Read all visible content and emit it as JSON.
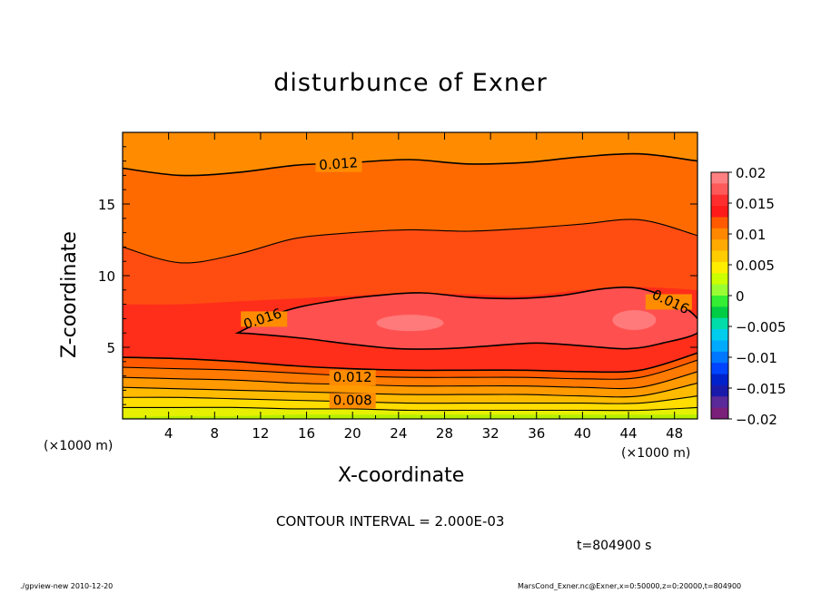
{
  "chart_data": {
    "type": "heatmap",
    "title": "disturbunce of Exner",
    "xlabel": "X-coordinate",
    "ylabel": "Z-coordinate",
    "x_unit_left": "(×1000 m)",
    "x_unit_right": "(×1000 m)",
    "xlim": [
      0,
      50
    ],
    "ylim": [
      0,
      20
    ],
    "x_ticks": [
      4,
      8,
      12,
      16,
      20,
      24,
      28,
      32,
      36,
      40,
      44,
      48
    ],
    "y_ticks": [
      5,
      10,
      15
    ],
    "x": [
      0,
      5,
      10,
      15,
      20,
      25,
      30,
      35,
      40,
      45,
      50
    ],
    "levels": [
      0.0,
      0.002,
      0.004,
      0.006,
      0.008,
      0.01,
      0.012,
      0.014,
      0.016,
      0.018,
      0.02
    ],
    "level_heights": [
      [
        0.1,
        0.2,
        0.2,
        0.3,
        0.3,
        0.3,
        0.3,
        0.3,
        0.3,
        0.3,
        0.3
      ],
      [
        0.8,
        0.8,
        0.8,
        0.7,
        0.7,
        0.6,
        0.6,
        0.6,
        0.6,
        0.6,
        0.8
      ],
      [
        1.5,
        1.5,
        1.4,
        1.3,
        1.2,
        1.1,
        1.1,
        1.1,
        1.1,
        1.1,
        1.6
      ],
      [
        2.2,
        2.1,
        2.0,
        1.9,
        1.8,
        1.7,
        1.7,
        1.7,
        1.6,
        1.6,
        2.5
      ],
      [
        2.9,
        2.8,
        2.7,
        2.5,
        2.4,
        2.3,
        2.3,
        2.3,
        2.2,
        2.2,
        3.3
      ],
      [
        3.6,
        3.5,
        3.4,
        3.2,
        3.0,
        2.9,
        2.9,
        2.9,
        2.8,
        2.9,
        4.1
      ],
      [
        4.3,
        4.2,
        4.0,
        3.7,
        3.5,
        3.4,
        3.4,
        3.4,
        3.3,
        3.4,
        4.6
      ],
      [
        4.5,
        4.5,
        4.5,
        4.6,
        4.7,
        4.7,
        4.8,
        4.8,
        4.8,
        4.7,
        4.6
      ]
    ],
    "upper_contours": {
      "c0_016_top": [
        8.0,
        8.0,
        8.2,
        8.4,
        8.6,
        8.8,
        8.7,
        8.6,
        9.0,
        9.2,
        9.0
      ],
      "c0_014": [
        12.0,
        10.9,
        11.5,
        12.6,
        13.0,
        13.2,
        13.1,
        13.3,
        13.6,
        13.9,
        12.8
      ],
      "c0_012": [
        17.5,
        17.0,
        17.2,
        17.7,
        17.9,
        18.1,
        17.8,
        17.9,
        18.3,
        18.5,
        18.0
      ]
    },
    "contour_labels": [
      "0.012",
      "0.016",
      "0.016",
      "0.012",
      "0.008"
    ],
    "colorbar": {
      "ticks": [
        "0.02",
        "0.015",
        "0.01",
        "0.005",
        "0",
        "−0.005",
        "−0.01",
        "−0.015",
        "−0.02"
      ],
      "colors": [
        "#ff8080",
        "#ff5a5a",
        "#ff2e2e",
        "#ff1a1a",
        "#ff5a00",
        "#ff8800",
        "#ffaa00",
        "#ffcc00",
        "#ffee00",
        "#ccff00",
        "#99ff33",
        "#33ee33",
        "#00cc44",
        "#00ddaa",
        "#00ccee",
        "#00aaff",
        "#0077ff",
        "#0044ff",
        "#0022cc",
        "#1a1aaa",
        "#5a2a9a",
        "#7a1f7a"
      ]
    },
    "fill_colors": {
      "bottom": "#b8f000",
      "l1": "#e6f000",
      "l2": "#ffdd00",
      "l3": "#ffbb00",
      "l4": "#ff9a00",
      "l5": "#ff7a00",
      "l6": "#ff5a00",
      "core": "#ff3030",
      "inner": "#ff5050",
      "highlight": "#ff7a7a",
      "above_016": "#ff2e1a",
      "band_014": "#ff4d12",
      "band_012": "#ff6a00",
      "top": "#ff8c00"
    }
  },
  "annotations": {
    "contour_interval": "CONTOUR INTERVAL = 2.000E-03",
    "time": "t=804900 s",
    "footer_left": "./gpview-new   2010-12-20",
    "footer_right": "MarsCond_Exner.nc@Exner,x=0:50000,z=0:20000,t=804900"
  }
}
